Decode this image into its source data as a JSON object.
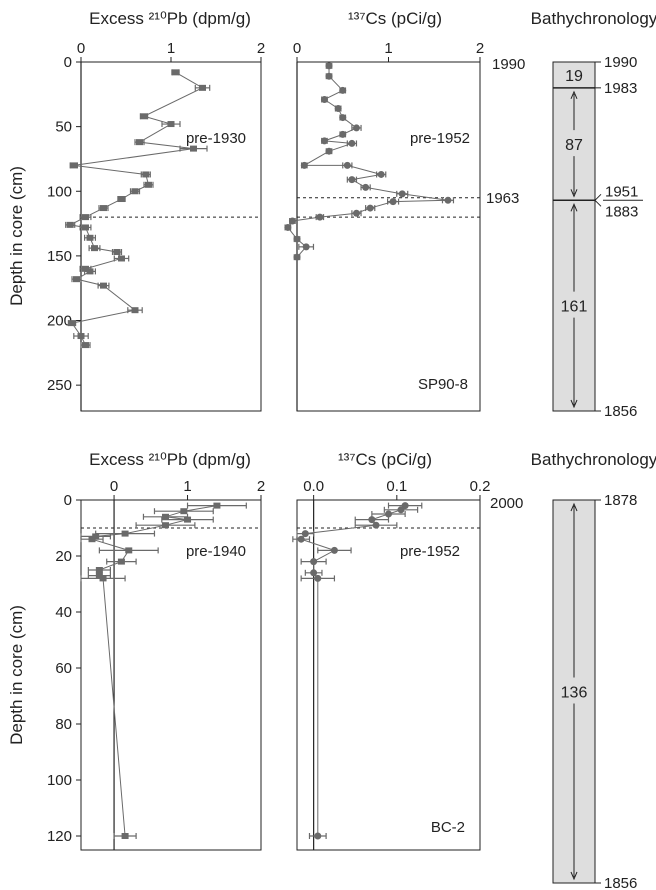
{
  "colors": {
    "axis": "#222222",
    "data": "#6a6a6a",
    "bar_fill": "#dedede",
    "ref_line": "#222222"
  },
  "chart_data": [
    {
      "id": "p1a",
      "type": "scatter",
      "panel_label": "",
      "title": "Excess ²¹⁰Pb (dpm/g)",
      "xlabel": "Excess ²¹⁰Pb (dpm/g)",
      "ylabel": "Depth in core (cm)",
      "xlim": [
        0,
        2
      ],
      "ylim": [
        0,
        270
      ],
      "y_inverted": true,
      "xticks": [
        0,
        1,
        2
      ],
      "xtick_labels": [
        "0",
        "1",
        "2"
      ],
      "yticks": [
        0,
        50,
        100,
        150,
        200,
        250
      ],
      "ytick_labels": [
        "0",
        "50",
        "100",
        "150",
        "200",
        "250"
      ],
      "zero_line": true,
      "dashed_line_y": 120,
      "annotation": "pre-1930",
      "marker": "square",
      "points": [
        {
          "x": 1.05,
          "y": 8,
          "e": 0.04
        },
        {
          "x": 1.35,
          "y": 20,
          "e": 0.08
        },
        {
          "x": 0.7,
          "y": 42,
          "e": 0.04
        },
        {
          "x": 1.0,
          "y": 48,
          "e": 0.1
        },
        {
          "x": 0.65,
          "y": 62,
          "e": 0.05
        },
        {
          "x": 1.25,
          "y": 67,
          "e": 0.15
        },
        {
          "x": -0.08,
          "y": 80,
          "e": 0.04
        },
        {
          "x": 0.72,
          "y": 87,
          "e": 0.05
        },
        {
          "x": 0.75,
          "y": 95,
          "e": 0.05
        },
        {
          "x": 0.6,
          "y": 100,
          "e": 0.05
        },
        {
          "x": 0.45,
          "y": 106,
          "e": 0.04
        },
        {
          "x": 0.25,
          "y": 113,
          "e": 0.05
        },
        {
          "x": 0.05,
          "y": 120,
          "e": 0.06
        },
        {
          "x": -0.12,
          "y": 126,
          "e": 0.05
        },
        {
          "x": 0.05,
          "y": 128,
          "e": 0.06
        },
        {
          "x": 0.1,
          "y": 136,
          "e": 0.06
        },
        {
          "x": 0.15,
          "y": 144,
          "e": 0.06
        },
        {
          "x": 0.4,
          "y": 147,
          "e": 0.05
        },
        {
          "x": 0.45,
          "y": 152,
          "e": 0.08
        },
        {
          "x": 0.05,
          "y": 160,
          "e": 0.06
        },
        {
          "x": 0.1,
          "y": 162,
          "e": 0.06
        },
        {
          "x": -0.05,
          "y": 168,
          "e": 0.05
        },
        {
          "x": 0.25,
          "y": 173,
          "e": 0.06
        },
        {
          "x": 0.6,
          "y": 192,
          "e": 0.08
        },
        {
          "x": -0.1,
          "y": 202,
          "e": 0.04
        },
        {
          "x": 0.0,
          "y": 212,
          "e": 0.08
        },
        {
          "x": 0.05,
          "y": 219,
          "e": 0.05
        }
      ]
    },
    {
      "id": "p1b",
      "type": "scatter",
      "panel_label": "SP90-8",
      "title": "¹³⁷Cs (pCi/g)",
      "xlabel": "¹³⁷Cs (pCi/g)",
      "ylabel": "",
      "xlim": [
        0,
        2
      ],
      "ylim": [
        0,
        270
      ],
      "y_inverted": true,
      "xticks": [
        0,
        1,
        2
      ],
      "xtick_labels": [
        "0",
        "1",
        "2"
      ],
      "zero_line": true,
      "dashed_line_y": [
        105,
        120
      ],
      "annotation": "pre-1952",
      "top_right_label": "1990",
      "side_label": "1963",
      "marker": "circle",
      "points": [
        {
          "x": 0.35,
          "y": 3,
          "e": 0.03
        },
        {
          "x": 0.35,
          "y": 11,
          "e": 0.03
        },
        {
          "x": 0.5,
          "y": 22,
          "e": 0.03
        },
        {
          "x": 0.3,
          "y": 29,
          "e": 0.03
        },
        {
          "x": 0.45,
          "y": 36,
          "e": 0.03
        },
        {
          "x": 0.5,
          "y": 43,
          "e": 0.03
        },
        {
          "x": 0.65,
          "y": 51,
          "e": 0.05
        },
        {
          "x": 0.5,
          "y": 56,
          "e": 0.03
        },
        {
          "x": 0.3,
          "y": 61,
          "e": 0.03
        },
        {
          "x": 0.6,
          "y": 63,
          "e": 0.05
        },
        {
          "x": 0.35,
          "y": 69,
          "e": 0.03
        },
        {
          "x": 0.08,
          "y": 80,
          "e": 0.03
        },
        {
          "x": 0.55,
          "y": 80,
          "e": 0.05
        },
        {
          "x": 0.92,
          "y": 87,
          "e": 0.05
        },
        {
          "x": 0.6,
          "y": 91,
          "e": 0.05
        },
        {
          "x": 0.75,
          "y": 97,
          "e": 0.05
        },
        {
          "x": 1.15,
          "y": 102,
          "e": 0.06
        },
        {
          "x": 1.65,
          "y": 107,
          "e": 0.06
        },
        {
          "x": 1.05,
          "y": 108,
          "e": 0.06
        },
        {
          "x": 0.8,
          "y": 113,
          "e": 0.05
        },
        {
          "x": 0.65,
          "y": 117,
          "e": 0.05
        },
        {
          "x": 0.25,
          "y": 120,
          "e": 0.04
        },
        {
          "x": -0.05,
          "y": 123,
          "e": 0.03
        },
        {
          "x": -0.1,
          "y": 128,
          "e": 0.03
        },
        {
          "x": 0.0,
          "y": 137,
          "e": 0.03
        },
        {
          "x": 0.1,
          "y": 143,
          "e": 0.08
        },
        {
          "x": 0.0,
          "y": 151,
          "e": 0.03
        }
      ]
    },
    {
      "id": "p2a",
      "type": "scatter",
      "panel_label": "",
      "title": "Excess ²¹⁰Pb (dpm/g)",
      "xlabel": "Excess ²¹⁰Pb (dpm/g)",
      "ylabel": "Depth in core (cm)",
      "xlim": [
        -0.45,
        2
      ],
      "ylim": [
        0,
        125
      ],
      "y_inverted": true,
      "xticks": [
        0,
        1,
        2
      ],
      "xtick_labels": [
        "0",
        "1",
        "2"
      ],
      "yticks": [
        0,
        20,
        40,
        60,
        80,
        100,
        120
      ],
      "ytick_labels": [
        "0",
        "20",
        "40",
        "60",
        "80",
        "100",
        "120"
      ],
      "zero_line": true,
      "dashed_line_y": 10,
      "annotation": "pre-1940",
      "marker": "square",
      "points": [
        {
          "x": 1.4,
          "y": 2,
          "e": 0.4
        },
        {
          "x": 0.95,
          "y": 4,
          "e": 0.4
        },
        {
          "x": 0.7,
          "y": 6,
          "e": 0.3
        },
        {
          "x": 1.0,
          "y": 7,
          "e": 0.35
        },
        {
          "x": 0.7,
          "y": 9,
          "e": 0.4
        },
        {
          "x": 0.15,
          "y": 12,
          "e": 0.4
        },
        {
          "x": -0.25,
          "y": 13,
          "e": 0.2
        },
        {
          "x": -0.3,
          "y": 14,
          "e": 0.15
        },
        {
          "x": 0.2,
          "y": 18,
          "e": 0.4
        },
        {
          "x": 0.1,
          "y": 22,
          "e": 0.2
        },
        {
          "x": -0.2,
          "y": 25,
          "e": 0.15
        },
        {
          "x": -0.2,
          "y": 27,
          "e": 0.15
        },
        {
          "x": -0.15,
          "y": 28,
          "e": 0.3
        },
        {
          "x": 0.15,
          "y": 120,
          "e": 0.15
        }
      ]
    },
    {
      "id": "p2b",
      "type": "scatter",
      "panel_label": "BC-2",
      "title": "¹³⁷Cs (pCi/g)",
      "xlabel": "¹³⁷Cs (pCi/g)",
      "ylabel": "",
      "xlim": [
        -0.02,
        0.2
      ],
      "ylim": [
        0,
        125
      ],
      "y_inverted": true,
      "xticks": [
        0.0,
        0.1,
        0.2
      ],
      "xtick_labels": [
        "0.0",
        "0.1",
        "0.2"
      ],
      "zero_line": true,
      "dashed_line_y": 10,
      "annotation": "pre-1952",
      "top_right_label": "2000",
      "marker": "circle",
      "points": [
        {
          "x": 0.11,
          "y": 2,
          "e": 0.02
        },
        {
          "x": 0.105,
          "y": 3.5,
          "e": 0.02
        },
        {
          "x": 0.09,
          "y": 5,
          "e": 0.02
        },
        {
          "x": 0.07,
          "y": 7,
          "e": 0.02
        },
        {
          "x": 0.075,
          "y": 9,
          "e": 0.025
        },
        {
          "x": -0.01,
          "y": 12,
          "e": 0.01
        },
        {
          "x": -0.015,
          "y": 14,
          "e": 0.01
        },
        {
          "x": 0.025,
          "y": 18,
          "e": 0.02
        },
        {
          "x": 0.0,
          "y": 22,
          "e": 0.015
        },
        {
          "x": 0.0,
          "y": 26,
          "e": 0.01
        },
        {
          "x": 0.005,
          "y": 28,
          "e": 0.02
        },
        {
          "x": 0.005,
          "y": 120,
          "e": 0.01
        }
      ]
    }
  ],
  "bathychronology": [
    {
      "title": "Bathychronology",
      "segments": [
        {
          "top": 0,
          "bottom": 20,
          "label": "19",
          "arrows": false
        },
        {
          "top": 20,
          "bottom": 107,
          "label": "87",
          "arrows": true
        },
        {
          "top": 107,
          "bottom": 270,
          "label": "161",
          "arrows": true
        }
      ],
      "year_labels": [
        {
          "y": 0,
          "text": "1990"
        },
        {
          "y": 20,
          "text": "1983"
        },
        {
          "y": 107,
          "text": "1951",
          "text2": "1883"
        },
        {
          "y": 270,
          "text": "1856"
        }
      ]
    },
    {
      "title": "Bathychronology",
      "segments": [
        {
          "top": 0,
          "bottom": 125,
          "label": "136",
          "arrows": true
        }
      ],
      "year_labels": [
        {
          "y": 0,
          "text": "1878"
        },
        {
          "y": 125,
          "text": "1856"
        }
      ]
    }
  ]
}
